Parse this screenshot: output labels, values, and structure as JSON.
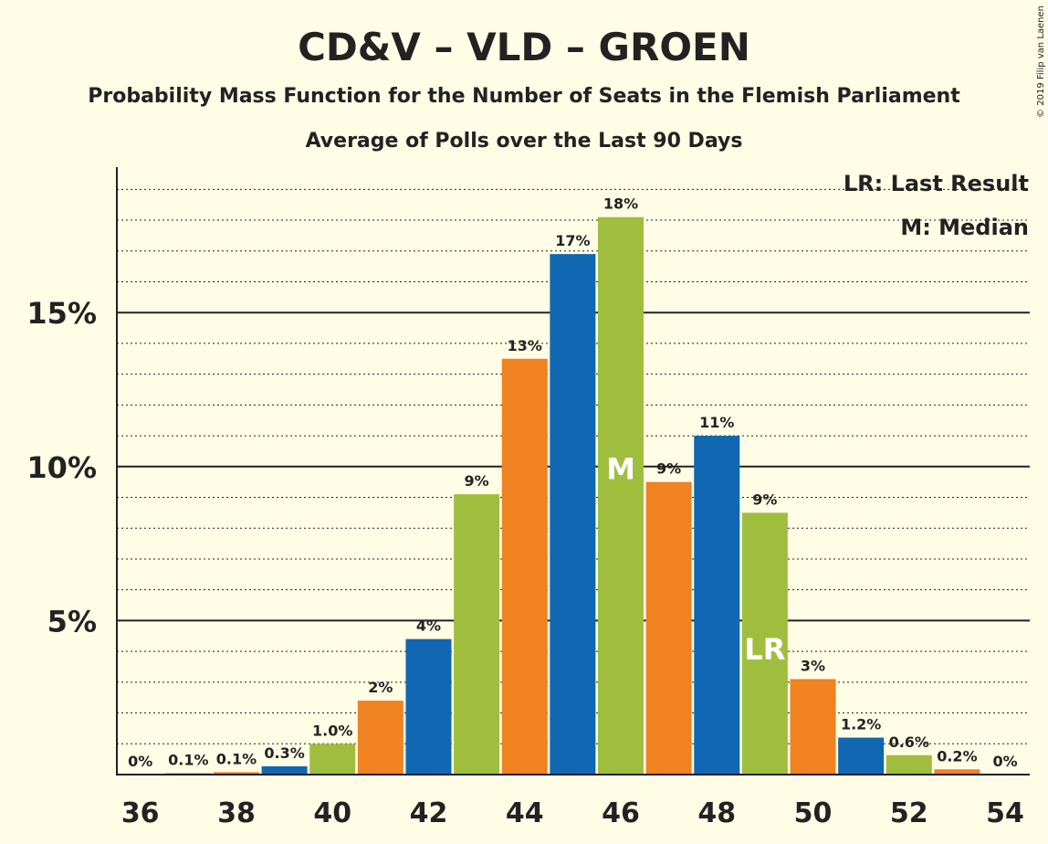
{
  "chart_data": {
    "type": "bar",
    "title": "CD&V – VLD – GROEN",
    "subtitle": "Probability Mass Function for the Number of Seats in the Flemish Parliament",
    "subtitle2": "Average of Polls over the Last 90 Days",
    "copyright": "© 2019 Filip van Laenen",
    "legend": {
      "last_result": "LR: Last Result",
      "median": "M: Median",
      "placement": "top-right"
    },
    "x": [
      36,
      37,
      38,
      39,
      40,
      41,
      42,
      43,
      44,
      45,
      46,
      47,
      48,
      49,
      50,
      51,
      52,
      53,
      54
    ],
    "values": [
      0,
      0.05,
      0.08,
      0.27,
      1.0,
      2.4,
      4.4,
      9.1,
      13.5,
      16.9,
      18.1,
      9.5,
      11.0,
      8.5,
      3.1,
      1.2,
      0.63,
      0.17,
      0
    ],
    "labels": [
      "0%",
      "0.1%",
      "0.1%",
      "0.3%",
      "1.0%",
      "2%",
      "4%",
      "9%",
      "13%",
      "17%",
      "18%",
      "9%",
      "11%",
      "9%",
      "3%",
      "1.2%",
      "0.6%",
      "0.2%",
      "0%"
    ],
    "x_tick_labels": [
      "36",
      "38",
      "40",
      "42",
      "44",
      "46",
      "48",
      "50",
      "52",
      "54"
    ],
    "y_tick_labels": [
      "5%",
      "10%",
      "15%"
    ],
    "y_ticks": [
      5,
      10,
      15
    ],
    "ylim": [
      0,
      19.7
    ],
    "minor_grid_step": 1,
    "median_seat": 46,
    "median_label": "M",
    "last_result_seat": 49,
    "last_result_label": "LR",
    "colors": {
      "blue": "#1167B1",
      "green": "#A0BE3E",
      "orange": "#F08221",
      "background": "#FFFDE6"
    },
    "color_cycle": [
      "blue",
      "green",
      "orange"
    ]
  }
}
